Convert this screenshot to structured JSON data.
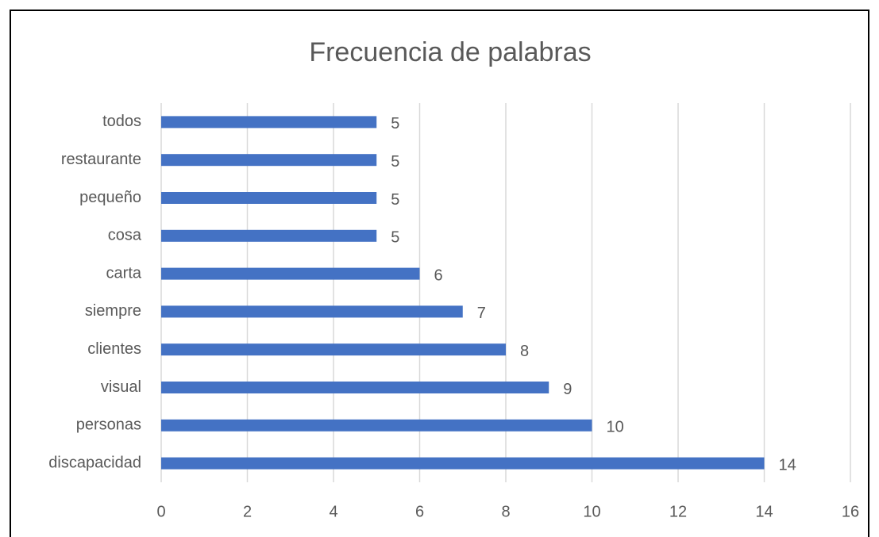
{
  "chart_data": {
    "type": "bar",
    "orientation": "horizontal",
    "title": "Frecuencia de palabras",
    "categories": [
      "discapacidad",
      "personas",
      "visual",
      "clientes",
      "siempre",
      "carta",
      "cosa",
      "pequeño",
      "restaurante",
      "todos"
    ],
    "values": [
      14,
      10,
      9,
      8,
      7,
      6,
      5,
      5,
      5,
      5
    ],
    "color": "#4472c4",
    "xlim": [
      0,
      16
    ],
    "xticks": [
      0,
      2,
      4,
      6,
      8,
      10,
      12,
      14,
      16
    ],
    "grid": true
  }
}
